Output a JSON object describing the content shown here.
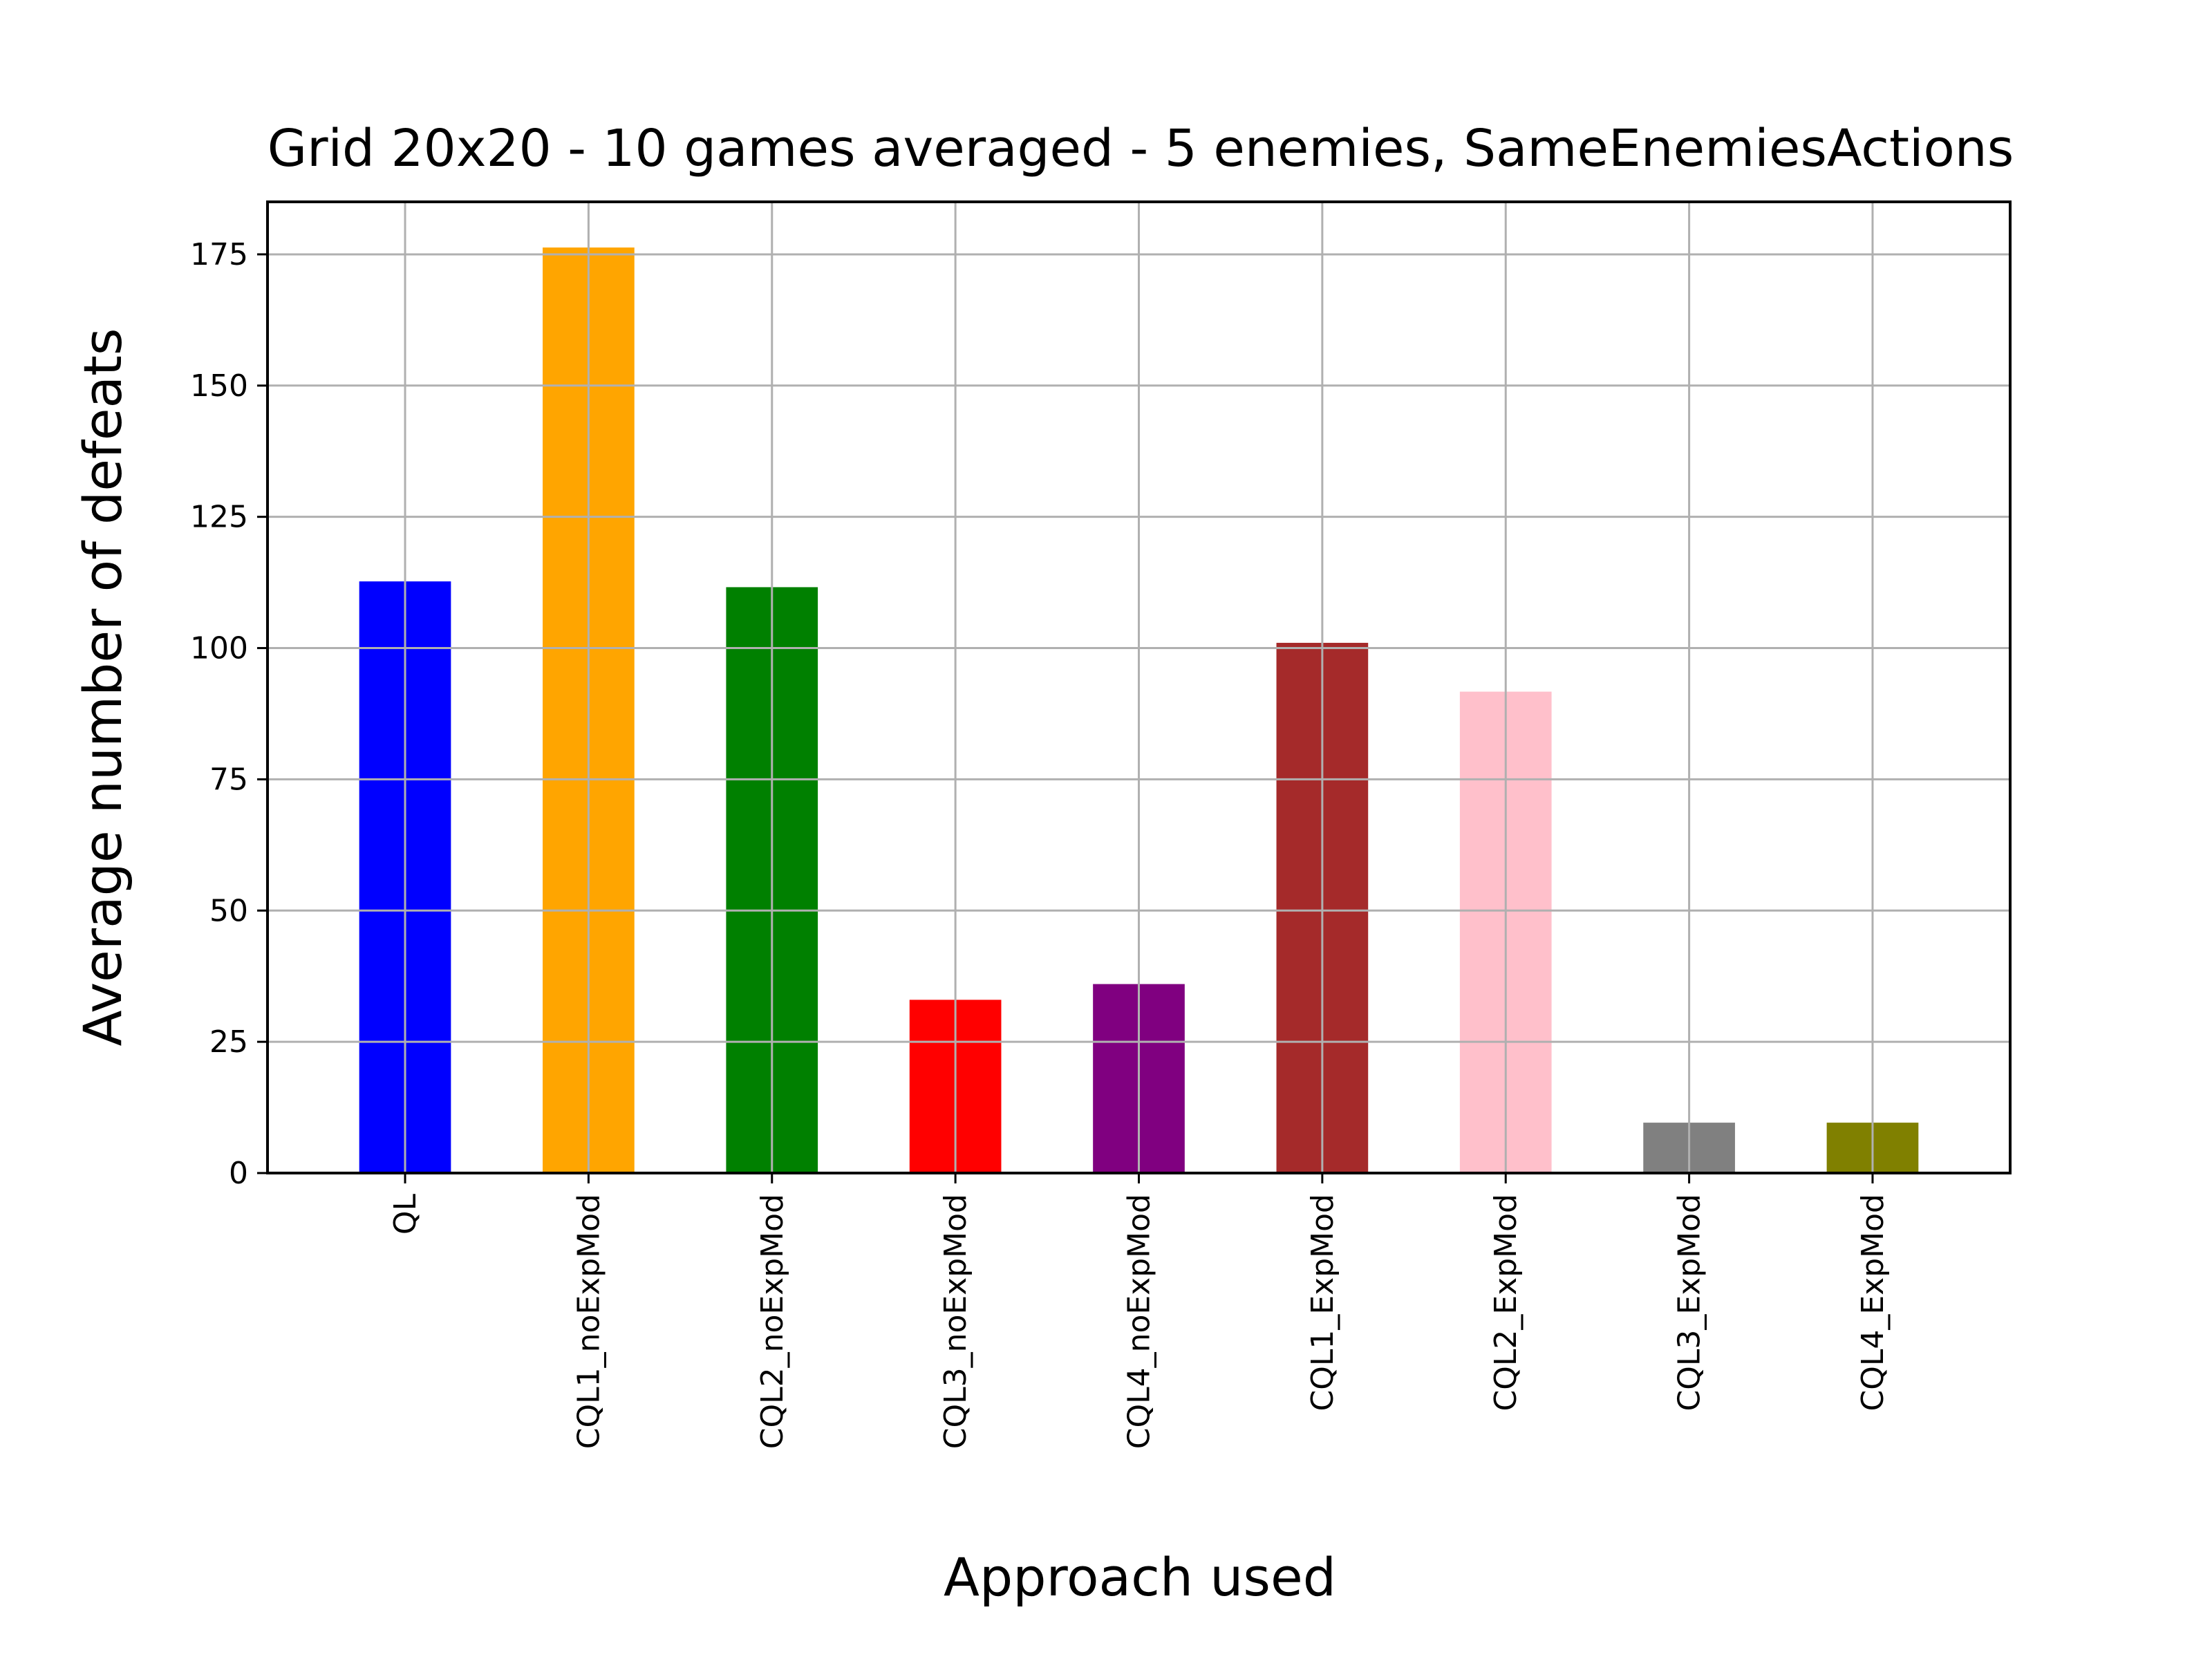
{
  "chart_data": {
    "type": "bar",
    "title": "Grid 20x20 - 10 games averaged - 5 enemies, SameEnemiesActions",
    "xlabel": "Approach used",
    "ylabel": "Average number of defeats",
    "categories": [
      "QL",
      "CQL1_noExpMod",
      "CQL2_noExpMod",
      "CQL3_noExpMod",
      "CQL4_noExpMod",
      "CQL1_ExpMod",
      "CQL2_ExpMod",
      "CQL3_ExpMod",
      "CQL4_ExpMod"
    ],
    "values": [
      112.7,
      176.3,
      111.6,
      33.0,
      36.0,
      101.0,
      91.7,
      9.6,
      9.6
    ],
    "colors": [
      "#0000ff",
      "#ffa500",
      "#008000",
      "#ff0000",
      "#800080",
      "#a52a2a",
      "#ffc0cb",
      "#808080",
      "#808000"
    ],
    "ylim": [
      0,
      185
    ],
    "yticks": [
      0,
      25,
      50,
      75,
      100,
      125,
      150,
      175
    ],
    "grid": true
  }
}
